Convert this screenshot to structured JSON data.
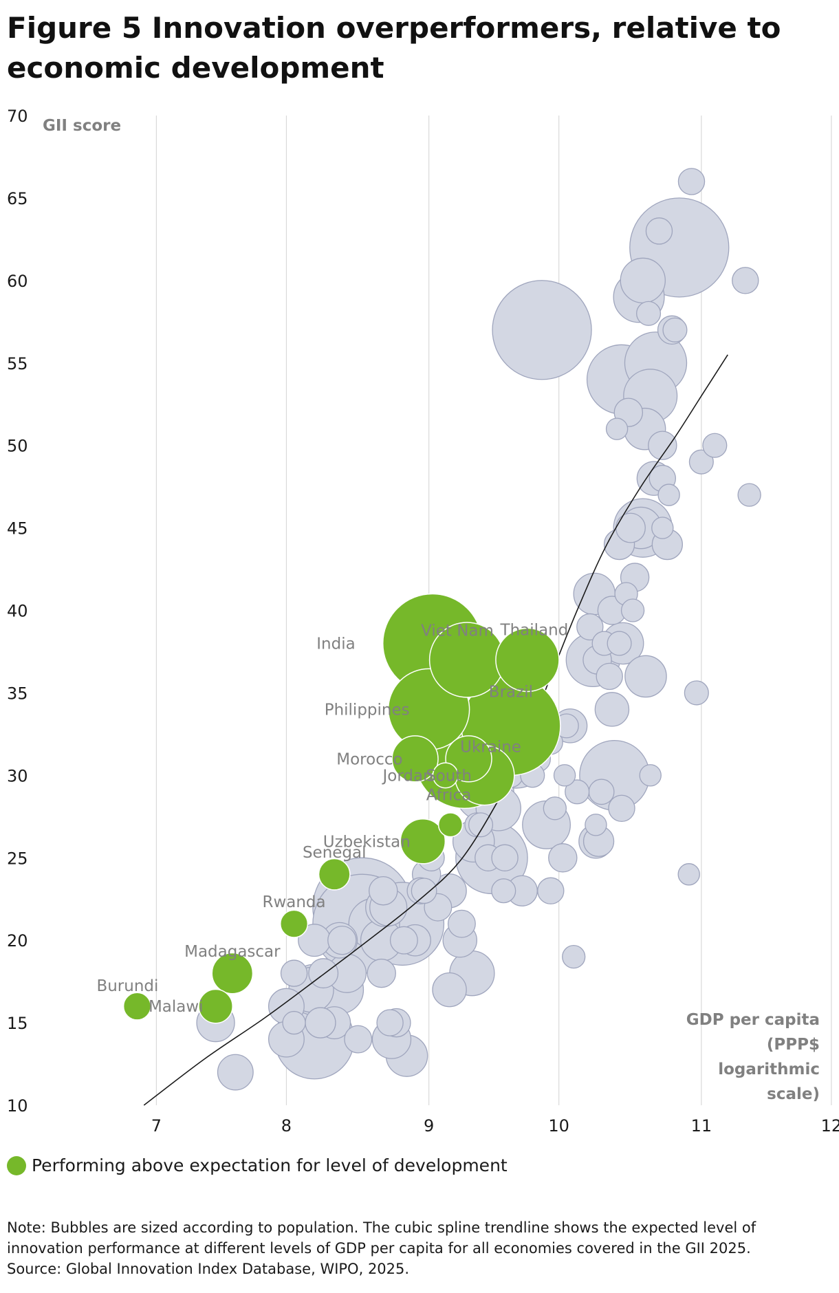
{
  "figure": {
    "title": "Figure 5 Innovation overperformers, relative to economic development",
    "legend_label": "Performing above expectation for level of development",
    "note": "Note: Bubbles are sized according to population. The cubic spline trendline shows the expected level of innovation performance at different levels of GDP per capita for all economies covered in the GII 2025.",
    "source": "Source: Global Innovation Index Database, WIPO, 2025."
  },
  "chart_data": {
    "type": "scatter",
    "title": "Figure 5 Innovation overperformers, relative to economic development",
    "ylabel": "GII score",
    "xlabel": "GDP per capita (PPP$ logarithmic scale)",
    "xlabel_lines": [
      "GDP per capita",
      "(PPP$",
      "logarithmic",
      "scale)"
    ],
    "x_scale": "log",
    "x_ticks": [
      {
        "label": "7",
        "value": 1000
      },
      {
        "label": "8",
        "value": 3000
      },
      {
        "label": "9",
        "value": 10000
      },
      {
        "label": "10",
        "value": 30000
      },
      {
        "label": "11",
        "value": 100000
      },
      {
        "label": "12",
        "value": 300000
      }
    ],
    "y_ticks": [
      10,
      15,
      20,
      25,
      30,
      35,
      40,
      45,
      50,
      55,
      60,
      65,
      70
    ],
    "ylim": [
      10,
      70
    ],
    "grid": "vertical",
    "colors": {
      "highlight": "#76b82a",
      "other": "#d3d7e3",
      "other_stroke": "#9fa5bd",
      "trend": "#1a1a1a",
      "grid": "#d9d9d9",
      "axis_label": "#808080"
    },
    "series": [
      {
        "name": "Performing above expectation for level of development",
        "color": "#76b82a",
        "points": [
          {
            "label": "Burundi",
            "gdp": 850,
            "gii": 16,
            "pop": 13
          },
          {
            "label": "Malawi",
            "gdp": 1650,
            "gii": 16,
            "pop": 20
          },
          {
            "label": "Madagascar",
            "gdp": 1900,
            "gii": 18,
            "pop": 29
          },
          {
            "label": "Rwanda",
            "gdp": 3200,
            "gii": 21,
            "pop": 13
          },
          {
            "label": "Senegal",
            "gdp": 4500,
            "gii": 24,
            "pop": 17
          },
          {
            "label": "Uzbekistan",
            "gdp": 9500,
            "gii": 26,
            "pop": 35
          },
          {
            "label": "Morocco",
            "gdp": 8900,
            "gii": 31,
            "pop": 37
          },
          {
            "label": "Jordan",
            "gdp": 11500,
            "gii": 30,
            "pop": 11
          },
          {
            "label": "South Africa",
            "gdp": 16000,
            "gii": 30,
            "pop": 62
          },
          {
            "label": "India",
            "gdp": 10300,
            "gii": 38,
            "pop": 1430
          },
          {
            "label": "Philippines",
            "gdp": 10000,
            "gii": 34,
            "pop": 115
          },
          {
            "label": "Viet Nam",
            "gdp": 13800,
            "gii": 37,
            "pop": 98
          },
          {
            "label": "Thailand",
            "gdp": 23000,
            "gii": 37,
            "pop": 70
          },
          {
            "label": "Brazil",
            "gdp": 20000,
            "gii": 33,
            "pop": 216
          },
          {
            "label": "Ukraine",
            "gdp": 14000,
            "gii": 31,
            "pop": 37
          },
          {
            "label": "",
            "gdp": 13500,
            "gii": 31,
            "pop": 220
          },
          {
            "label": "",
            "gdp": 12000,
            "gii": 27,
            "pop": 10
          }
        ]
      },
      {
        "name": "Other economies",
        "color": "#d3d7e3",
        "points": [
          {
            "label": "",
            "gdp": 1950,
            "gii": 12,
            "pop": 22
          },
          {
            "label": "",
            "gdp": 1650,
            "gii": 15,
            "pop": 25
          },
          {
            "label": "",
            "gdp": 3000,
            "gii": 16,
            "pop": 22
          },
          {
            "label": "",
            "gdp": 3000,
            "gii": 14,
            "pop": 22
          },
          {
            "label": "",
            "gdp": 3200,
            "gii": 15,
            "pop": 9
          },
          {
            "label": "",
            "gdp": 3200,
            "gii": 18,
            "pop": 12
          },
          {
            "label": "",
            "gdp": 3700,
            "gii": 17,
            "pop": 35
          },
          {
            "label": "",
            "gdp": 3800,
            "gii": 17,
            "pop": 45
          },
          {
            "label": "",
            "gdp": 3800,
            "gii": 14,
            "pop": 110
          },
          {
            "label": "",
            "gdp": 3800,
            "gii": 20,
            "pop": 18
          },
          {
            "label": "",
            "gdp": 4000,
            "gii": 15,
            "pop": 16
          },
          {
            "label": "",
            "gdp": 4100,
            "gii": 18,
            "pop": 15
          },
          {
            "label": "",
            "gdp": 4500,
            "gii": 15,
            "pop": 18
          },
          {
            "label": "",
            "gdp": 4700,
            "gii": 17,
            "pop": 40
          },
          {
            "label": "",
            "gdp": 4700,
            "gii": 20,
            "pop": 22
          },
          {
            "label": "",
            "gdp": 4800,
            "gii": 20,
            "pop": 14
          },
          {
            "label": "",
            "gdp": 5000,
            "gii": 18,
            "pop": 26
          },
          {
            "label": "",
            "gdp": 5500,
            "gii": 14,
            "pop": 13
          },
          {
            "label": "",
            "gdp": 5700,
            "gii": 22,
            "pop": 225
          },
          {
            "label": "",
            "gdp": 5700,
            "gii": 21,
            "pop": 220
          },
          {
            "label": "",
            "gdp": 6300,
            "gii": 21,
            "pop": 45
          },
          {
            "label": "",
            "gdp": 6700,
            "gii": 20,
            "pop": 30
          },
          {
            "label": "",
            "gdp": 6700,
            "gii": 18,
            "pop": 14
          },
          {
            "label": "",
            "gdp": 6800,
            "gii": 23,
            "pop": 14
          },
          {
            "label": "",
            "gdp": 6900,
            "gii": 22,
            "pop": 26
          },
          {
            "label": "",
            "gdp": 7100,
            "gii": 22,
            "pop": 24
          },
          {
            "label": "",
            "gdp": 7200,
            "gii": 15,
            "pop": 12
          },
          {
            "label": "",
            "gdp": 7300,
            "gii": 14,
            "pop": 26
          },
          {
            "label": "",
            "gdp": 7600,
            "gii": 15,
            "pop": 14
          },
          {
            "label": "",
            "gdp": 8000,
            "gii": 21,
            "pop": 120
          },
          {
            "label": "",
            "gdp": 8100,
            "gii": 20,
            "pop": 13
          },
          {
            "label": "",
            "gdp": 8300,
            "gii": 13,
            "pop": 30
          },
          {
            "label": "",
            "gdp": 8900,
            "gii": 20,
            "pop": 17
          },
          {
            "label": "",
            "gdp": 9300,
            "gii": 23,
            "pop": 12
          },
          {
            "label": "",
            "gdp": 9600,
            "gii": 23,
            "pop": 11
          },
          {
            "label": "",
            "gdp": 9800,
            "gii": 24,
            "pop": 14
          },
          {
            "label": "",
            "gdp": 10200,
            "gii": 25,
            "pop": 12
          },
          {
            "label": "",
            "gdp": 10800,
            "gii": 22,
            "pop": 13
          },
          {
            "label": "",
            "gdp": 11900,
            "gii": 17,
            "pop": 20
          },
          {
            "label": "",
            "gdp": 11900,
            "gii": 23,
            "pop": 20
          },
          {
            "label": "",
            "gdp": 13000,
            "gii": 20,
            "pop": 20
          },
          {
            "label": "",
            "gdp": 13200,
            "gii": 21,
            "pop": 13
          },
          {
            "label": "",
            "gdp": 14400,
            "gii": 18,
            "pop": 35
          },
          {
            "label": "",
            "gdp": 14600,
            "gii": 26,
            "pop": 30
          },
          {
            "label": "",
            "gdp": 15000,
            "gii": 27,
            "pop": 10
          },
          {
            "label": "",
            "gdp": 15500,
            "gii": 27,
            "pop": 10
          },
          {
            "label": "",
            "gdp": 16000,
            "gii": 29,
            "pop": 60
          },
          {
            "label": "",
            "gdp": 16500,
            "gii": 25,
            "pop": 12
          },
          {
            "label": "",
            "gdp": 17000,
            "gii": 25,
            "pop": 90
          },
          {
            "label": "",
            "gdp": 17500,
            "gii": 30,
            "pop": 12
          },
          {
            "label": "",
            "gdp": 18000,
            "gii": 28,
            "pop": 35
          },
          {
            "label": "",
            "gdp": 18800,
            "gii": 23,
            "pop": 10
          },
          {
            "label": "",
            "gdp": 19000,
            "gii": 25,
            "pop": 12
          },
          {
            "label": "",
            "gdp": 20000,
            "gii": 30,
            "pop": 10
          },
          {
            "label": "",
            "gdp": 21000,
            "gii": 31,
            "pop": 60
          },
          {
            "label": "",
            "gdp": 22000,
            "gii": 23,
            "pop": 16
          },
          {
            "label": "",
            "gdp": 24000,
            "gii": 30,
            "pop": 10
          },
          {
            "label": "",
            "gdp": 25000,
            "gii": 31,
            "pop": 12
          },
          {
            "label": "",
            "gdp": 26000,
            "gii": 57,
            "pop": 1410
          },
          {
            "label": "",
            "gdp": 27000,
            "gii": 27,
            "pop": 40
          },
          {
            "label": "",
            "gdp": 28000,
            "gii": 23,
            "pop": 12
          },
          {
            "label": "",
            "gdp": 28000,
            "gii": 32,
            "pop": 10
          },
          {
            "label": "",
            "gdp": 29000,
            "gii": 28,
            "pop": 9
          },
          {
            "label": "",
            "gdp": 31000,
            "gii": 25,
            "pop": 14
          },
          {
            "label": "",
            "gdp": 31500,
            "gii": 30,
            "pop": 8
          },
          {
            "label": "",
            "gdp": 32000,
            "gii": 33,
            "pop": 10
          },
          {
            "label": "",
            "gdp": 33000,
            "gii": 33,
            "pop": 20
          },
          {
            "label": "",
            "gdp": 34000,
            "gii": 19,
            "pop": 9
          },
          {
            "label": "",
            "gdp": 35000,
            "gii": 29,
            "pop": 10
          },
          {
            "label": "",
            "gdp": 39000,
            "gii": 39,
            "pop": 12
          },
          {
            "label": "",
            "gdp": 40000,
            "gii": 37,
            "pop": 50
          },
          {
            "label": "",
            "gdp": 40500,
            "gii": 41,
            "pop": 30
          },
          {
            "label": "",
            "gdp": 41000,
            "gii": 26,
            "pop": 20
          },
          {
            "label": "",
            "gdp": 41000,
            "gii": 27,
            "pop": 8
          },
          {
            "label": "",
            "gdp": 41500,
            "gii": 37,
            "pop": 14
          },
          {
            "label": "",
            "gdp": 42000,
            "gii": 26,
            "pop": 16
          },
          {
            "label": "",
            "gdp": 43000,
            "gii": 29,
            "pop": 11
          },
          {
            "label": "",
            "gdp": 44000,
            "gii": 38,
            "pop": 10
          },
          {
            "label": "",
            "gdp": 46000,
            "gii": 36,
            "pop": 12
          },
          {
            "label": "",
            "gdp": 47000,
            "gii": 34,
            "pop": 20
          },
          {
            "label": "",
            "gdp": 47000,
            "gii": 40,
            "pop": 14
          },
          {
            "label": "",
            "gdp": 48000,
            "gii": 30,
            "pop": 85
          },
          {
            "label": "",
            "gdp": 49000,
            "gii": 51,
            "pop": 8
          },
          {
            "label": "",
            "gdp": 50000,
            "gii": 44,
            "pop": 16
          },
          {
            "label": "",
            "gdp": 50000,
            "gii": 38,
            "pop": 10
          },
          {
            "label": "",
            "gdp": 51000,
            "gii": 28,
            "pop": 12
          },
          {
            "label": "",
            "gdp": 51000,
            "gii": 54,
            "pop": 84
          },
          {
            "label": "",
            "gdp": 51500,
            "gii": 38,
            "pop": 30
          },
          {
            "label": "",
            "gdp": 53000,
            "gii": 41,
            "pop": 9
          },
          {
            "label": "",
            "gdp": 54000,
            "gii": 52,
            "pop": 14
          },
          {
            "label": "",
            "gdp": 55000,
            "gii": 45,
            "pop": 15
          },
          {
            "label": "",
            "gdp": 56000,
            "gii": 40,
            "pop": 9
          },
          {
            "label": "",
            "gdp": 57000,
            "gii": 42,
            "pop": 14
          },
          {
            "label": "",
            "gdp": 59000,
            "gii": 59,
            "pop": 45
          },
          {
            "label": "",
            "gdp": 60000,
            "gii": 45,
            "pop": 30
          },
          {
            "label": "",
            "gdp": 61000,
            "gii": 45,
            "pop": 60
          },
          {
            "label": "",
            "gdp": 61000,
            "gii": 60,
            "pop": 35
          },
          {
            "label": "",
            "gdp": 62000,
            "gii": 51,
            "pop": 30
          },
          {
            "label": "",
            "gdp": 62500,
            "gii": 36,
            "pop": 30
          },
          {
            "label": "",
            "gdp": 64000,
            "gii": 58,
            "pop": 10
          },
          {
            "label": "",
            "gdp": 65000,
            "gii": 53,
            "pop": 50
          },
          {
            "label": "",
            "gdp": 65000,
            "gii": 30,
            "pop": 8
          },
          {
            "label": "",
            "gdp": 67000,
            "gii": 48,
            "pop": 20
          },
          {
            "label": "",
            "gdp": 68000,
            "gii": 55,
            "pop": 67
          },
          {
            "label": "",
            "gdp": 70000,
            "gii": 63,
            "pop": 12
          },
          {
            "label": "",
            "gdp": 72000,
            "gii": 50,
            "pop": 14
          },
          {
            "label": "",
            "gdp": 72000,
            "gii": 45,
            "pop": 8
          },
          {
            "label": "",
            "gdp": 72000,
            "gii": 48,
            "pop": 12
          },
          {
            "label": "",
            "gdp": 75000,
            "gii": 44,
            "pop": 16
          },
          {
            "label": "",
            "gdp": 76000,
            "gii": 47,
            "pop": 8
          },
          {
            "label": "",
            "gdp": 78000,
            "gii": 57,
            "pop": 14
          },
          {
            "label": "",
            "gdp": 80000,
            "gii": 57,
            "pop": 10
          },
          {
            "label": "",
            "gdp": 83000,
            "gii": 62,
            "pop": 335
          },
          {
            "label": "",
            "gdp": 90000,
            "gii": 24,
            "pop": 8
          },
          {
            "label": "",
            "gdp": 92000,
            "gii": 66,
            "pop": 12
          },
          {
            "label": "",
            "gdp": 96000,
            "gii": 35,
            "pop": 10
          },
          {
            "label": "",
            "gdp": 100000,
            "gii": 49,
            "pop": 10
          },
          {
            "label": "",
            "gdp": 112000,
            "gii": 50,
            "pop": 10
          },
          {
            "label": "",
            "gdp": 145000,
            "gii": 60,
            "pop": 12
          },
          {
            "label": "",
            "gdp": 150000,
            "gii": 47,
            "pop": 9
          }
        ]
      }
    ],
    "trendline": [
      {
        "gdp": 900,
        "gii": 10
      },
      {
        "gdp": 1500,
        "gii": 12.8
      },
      {
        "gdp": 2500,
        "gii": 15.3
      },
      {
        "gdp": 4000,
        "gii": 17.8
      },
      {
        "gdp": 6000,
        "gii": 20
      },
      {
        "gdp": 9000,
        "gii": 22.3
      },
      {
        "gdp": 13000,
        "gii": 24.8
      },
      {
        "gdp": 18000,
        "gii": 28.5
      },
      {
        "gdp": 22000,
        "gii": 31.5
      },
      {
        "gdp": 28000,
        "gii": 36
      },
      {
        "gdp": 35000,
        "gii": 40
      },
      {
        "gdp": 45000,
        "gii": 44
      },
      {
        "gdp": 60000,
        "gii": 47.5
      },
      {
        "gdp": 80000,
        "gii": 50.5
      },
      {
        "gdp": 100000,
        "gii": 53
      },
      {
        "gdp": 125000,
        "gii": 55.5
      }
    ]
  }
}
